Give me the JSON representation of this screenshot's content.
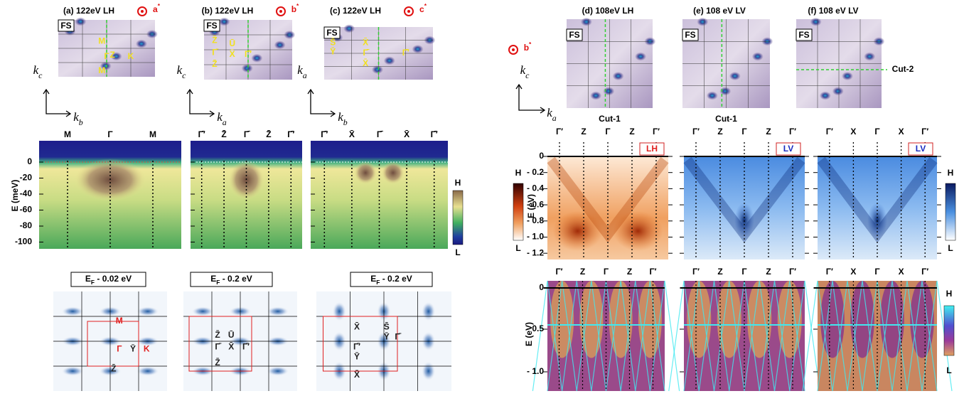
{
  "left_panels": [
    {
      "title": "(a) 122eV LH",
      "axis": {
        "main": "a",
        "sup": "*"
      },
      "fs_label": "FS",
      "fs_axes": {
        "y": {
          "main": "k",
          "sub": "c"
        },
        "x": {
          "main": "k",
          "sub": "b"
        }
      },
      "fs_points": [
        "M",
        "Γ",
        "Z",
        "K",
        "M"
      ],
      "cut_labels": [
        "M",
        "Γ",
        "M"
      ],
      "energy": {
        "main": "E",
        "sub": "F",
        "rest": " - 0.02 eV"
      },
      "calc_labels": [
        "M",
        "Γ",
        "Ȳ",
        "K",
        "Z̄"
      ]
    },
    {
      "title": "(b) 122eV LH",
      "axis": {
        "main": "b",
        "sup": "*"
      },
      "fs_label": "FS",
      "fs_axes": {
        "y": {
          "main": "k",
          "sub": "c"
        },
        "x": {
          "main": "k",
          "sub": "a"
        }
      },
      "fs_points": [
        "Z̄",
        "Γ̄",
        "Z̄",
        "Ū",
        "X̄",
        "Γ̄′"
      ],
      "cut_labels": [
        "Γ̄′",
        "Z̄",
        "Γ̄",
        "Z̄",
        "Γ̄′"
      ],
      "energy": {
        "main": "E",
        "sub": "F",
        "rest": " - 0.2 eV"
      },
      "calc_labels": [
        "Z̄",
        "Ū",
        "Γ̄",
        "X̄",
        "Γ̄′",
        "Z̄"
      ]
    },
    {
      "title": "(c) 122eV LH",
      "axis": {
        "main": "c",
        "sup": "*"
      },
      "fs_label": "FS",
      "fs_axes": {
        "y": {
          "main": "k",
          "sub": "a"
        },
        "x": {
          "main": "k",
          "sub": "b"
        }
      },
      "fs_points": [
        "S̄",
        "Ȳ",
        "X̄",
        "Γ̄",
        "X̄",
        "Γ̄′"
      ],
      "cut_labels": [
        "Γ̄′",
        "X̄",
        "Γ̄",
        "X̄",
        "Γ̄′"
      ],
      "energy": {
        "main": "E",
        "sub": "F",
        "rest": " - 0.2 eV"
      },
      "calc_labels": [
        "X̄",
        "S̄",
        "Ȳ",
        "Γ̄′",
        "Ȳ",
        "Γ̄",
        "X̄"
      ]
    }
  ],
  "left_spectra_axis": {
    "label": "E (meV)",
    "ticks": [
      "0",
      "-20",
      "-40",
      "-60",
      "-80",
      "-100"
    ]
  },
  "left_colorbar": {
    "high": "H",
    "low": "L"
  },
  "right_marker": {
    "main": "b",
    "sup": "*"
  },
  "right_fs_axes": {
    "y": {
      "main": "k",
      "sub": "c"
    },
    "x": {
      "main": "k",
      "sub": "a"
    }
  },
  "right_panels": [
    {
      "title": "(d) 108eV LH",
      "fs_label": "FS",
      "cut": "Cut-1",
      "cut_labels": [
        "Γ′",
        "Z",
        "Γ",
        "Z",
        "Γ′"
      ],
      "badge": "LH",
      "calc_labels": [
        "Γ′",
        "Z",
        "Γ",
        "Z",
        "Γ′"
      ]
    },
    {
      "title": "(e) 108 eV LV",
      "fs_label": "FS",
      "cut": "Cut-1",
      "cut_labels": [
        "Γ′",
        "Z",
        "Γ",
        "Z",
        "Γ′"
      ],
      "badge": "LV",
      "calc_labels": [
        "Γ′",
        "Z",
        "Γ",
        "Z",
        "Γ′"
      ]
    },
    {
      "title": "(f) 108 eV LV",
      "fs_label": "FS",
      "cut": "Cut-2",
      "cut_labels": [
        "Γ′",
        "X",
        "Γ",
        "X",
        "Γ′"
      ],
      "badge": "LV",
      "calc_labels": [
        "Γ′",
        "X",
        "Γ",
        "X",
        "Γ′"
      ]
    }
  ],
  "right_spectra_axis": {
    "label": "E (eV)",
    "ticks": [
      "0",
      "- 0.2",
      "- 0.4",
      "- 0.6",
      "- 0.8",
      "- 1.0",
      "- 1.2"
    ]
  },
  "right_calc_axis": {
    "label": "E (eV)",
    "ticks": [
      "0",
      "- 0.5",
      "- 1.0"
    ]
  },
  "lh_colorbar": {
    "high": "H",
    "low": "L"
  },
  "lv_colorbar": {
    "high": "H",
    "low": "L"
  },
  "calc_colorbar": {
    "high": "H",
    "low": "L"
  }
}
